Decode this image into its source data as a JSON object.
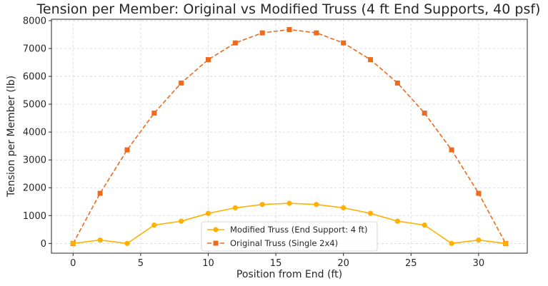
{
  "chart_data": {
    "type": "line",
    "title": "Tension per Member: Original vs Modified Truss (4 ft End Supports, 40 psf)",
    "xlabel": "Position from End (ft)",
    "ylabel": "Tension per Member (lb)",
    "xlim": [
      -1.6,
      33.6
    ],
    "ylim": [
      -350,
      8050
    ],
    "xticks": [
      0,
      5,
      10,
      15,
      20,
      25,
      30
    ],
    "yticks": [
      0,
      1000,
      2000,
      3000,
      4000,
      5000,
      6000,
      7000,
      8000
    ],
    "grid": true,
    "legend_position": "lower-center",
    "x": [
      0,
      2,
      4,
      6,
      8,
      10,
      12,
      14,
      16,
      18,
      20,
      22,
      24,
      26,
      28,
      30,
      32
    ],
    "series": [
      {
        "name": "Modified Truss (End Support: 4 ft)",
        "color": "#ffb000",
        "line_style": "solid",
        "marker": "circle",
        "values": [
          0,
          120,
          0,
          660,
          800,
          1080,
          1280,
          1400,
          1440,
          1400,
          1280,
          1080,
          800,
          660,
          0,
          120,
          0
        ]
      },
      {
        "name": "Original Truss (Single 2x4)",
        "color": "#ee6a1c",
        "line_style": "dashed",
        "marker": "square",
        "values": [
          0,
          1800,
          3360,
          4680,
          5760,
          6600,
          7200,
          7560,
          7680,
          7560,
          7200,
          6600,
          5760,
          4680,
          3360,
          1800,
          0
        ]
      }
    ]
  }
}
